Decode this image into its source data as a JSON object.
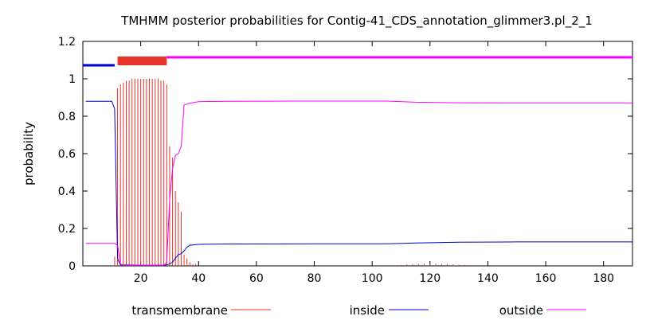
{
  "chart_data": {
    "type": "line",
    "title": "TMHMM posterior probabilities for Contig-41_CDS_annotation_glimmer3.pl_2_1",
    "xlabel": "",
    "ylabel": "probability",
    "xlim": [
      0,
      190
    ],
    "ylim": [
      0,
      1.2
    ],
    "xticks": [
      20,
      40,
      60,
      80,
      100,
      120,
      140,
      160,
      180
    ],
    "yticks": [
      0,
      0.2,
      0.4,
      0.6,
      0.8,
      1,
      1.2
    ],
    "grid": false,
    "legend_position": "bottom",
    "colors": {
      "transmembrane": "#e8332a",
      "inside": "#0000d0",
      "outside": "#ff00ff"
    },
    "topology": [
      {
        "state": "inside",
        "start": 1,
        "end": 11
      },
      {
        "state": "transmembrane",
        "start": 12,
        "end": 29
      },
      {
        "state": "outside",
        "start": 30,
        "end": 190
      }
    ],
    "series": [
      {
        "name": "transmembrane",
        "style": "impulses",
        "points": [
          [
            11,
            0.05
          ],
          [
            12,
            0.95
          ],
          [
            13,
            0.97
          ],
          [
            14,
            0.98
          ],
          [
            15,
            0.99
          ],
          [
            16,
            0.99
          ],
          [
            17,
            1
          ],
          [
            18,
            1
          ],
          [
            19,
            1
          ],
          [
            20,
            1
          ],
          [
            21,
            1
          ],
          [
            22,
            1
          ],
          [
            23,
            1
          ],
          [
            24,
            1
          ],
          [
            25,
            1
          ],
          [
            26,
            1
          ],
          [
            27,
            0.99
          ],
          [
            28,
            0.99
          ],
          [
            29,
            0.97
          ],
          [
            30,
            0.64
          ],
          [
            31,
            0.58
          ],
          [
            32,
            0.4
          ],
          [
            33,
            0.34
          ],
          [
            34,
            0.29
          ],
          [
            35,
            0.06
          ],
          [
            36,
            0.04
          ],
          [
            37,
            0.02
          ],
          [
            38,
            0.01
          ],
          [
            39,
            0.01
          ],
          [
            110,
            0.005
          ],
          [
            112,
            0.008
          ],
          [
            114,
            0.01
          ],
          [
            116,
            0.01
          ],
          [
            118,
            0.012
          ],
          [
            120,
            0.012
          ],
          [
            122,
            0.012
          ],
          [
            124,
            0.01
          ],
          [
            126,
            0.01
          ],
          [
            128,
            0.008
          ],
          [
            130,
            0.006
          ],
          [
            132,
            0.005
          ],
          [
            134,
            0.004
          ],
          [
            136,
            0.003
          ]
        ]
      },
      {
        "name": "inside",
        "style": "line",
        "points": [
          [
            1,
            0.88
          ],
          [
            10,
            0.88
          ],
          [
            11,
            0.84
          ],
          [
            12,
            0.04
          ],
          [
            13,
            0.005
          ],
          [
            20,
            0.003
          ],
          [
            28,
            0.003
          ],
          [
            29,
            0.005
          ],
          [
            30,
            0.01
          ],
          [
            31,
            0.02
          ],
          [
            32,
            0.04
          ],
          [
            33,
            0.06
          ],
          [
            34,
            0.065
          ],
          [
            35,
            0.08
          ],
          [
            36,
            0.1
          ],
          [
            37,
            0.11
          ],
          [
            40,
            0.115
          ],
          [
            50,
            0.117
          ],
          [
            80,
            0.118
          ],
          [
            105,
            0.118
          ],
          [
            115,
            0.122
          ],
          [
            130,
            0.127
          ],
          [
            150,
            0.128
          ],
          [
            190,
            0.128
          ]
        ]
      },
      {
        "name": "outside",
        "style": "line",
        "points": [
          [
            1,
            0.12
          ],
          [
            11,
            0.12
          ],
          [
            12,
            0.11
          ],
          [
            13,
            0.01
          ],
          [
            14,
            0.003
          ],
          [
            28,
            0.003
          ],
          [
            29,
            0.02
          ],
          [
            30,
            0.35
          ],
          [
            31,
            0.52
          ],
          [
            32,
            0.59
          ],
          [
            33,
            0.6
          ],
          [
            34,
            0.64
          ],
          [
            35,
            0.86
          ],
          [
            37,
            0.87
          ],
          [
            40,
            0.878
          ],
          [
            50,
            0.88
          ],
          [
            80,
            0.881
          ],
          [
            105,
            0.881
          ],
          [
            115,
            0.875
          ],
          [
            130,
            0.872
          ],
          [
            150,
            0.871
          ],
          [
            190,
            0.871
          ]
        ]
      }
    ]
  }
}
